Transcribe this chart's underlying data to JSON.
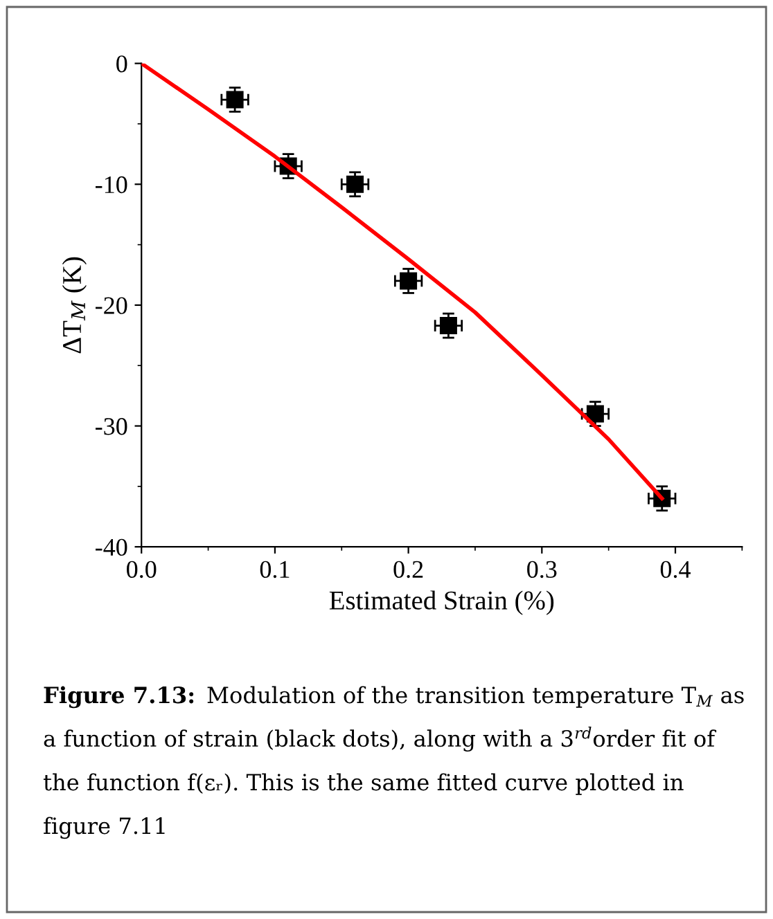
{
  "chart_data": {
    "type": "scatter",
    "xlabel": "Estimated Strain (%)",
    "ylabel": "ΔT$_{M}$ (K)",
    "series": [
      {
        "color": "#000000",
        "marker": "square",
        "x": [
          0.07,
          0.11,
          0.16,
          0.2,
          0.23,
          0.34,
          0.39
        ],
        "values": [
          -3,
          -8.5,
          -10,
          -18,
          -21.7,
          -29,
          -36
        ],
        "errors": [
          1,
          1,
          1,
          1,
          1,
          1,
          1
        ],
        "xerrors": [
          0.01,
          0.01,
          0.01,
          0.01,
          0.01,
          0.01,
          0.01
        ]
      },
      {
        "type": "line",
        "color": "#ff0000",
        "marker": "none",
        "line_style": "solid",
        "x": [
          0,
          0.05,
          0.1,
          0.15,
          0.2,
          0.25,
          0.3,
          0.35,
          0.39
        ],
        "values": [
          0,
          -3.8,
          -7.7,
          -11.9,
          -16.2,
          -20.6,
          -25.8,
          -31.1,
          -36
        ]
      }
    ],
    "xlim": [
      0,
      0.45
    ],
    "xticks": [
      {
        "value": 0,
        "label": "0.0"
      },
      0.1,
      0.2,
      0.3,
      0.4
    ],
    "ylim": [
      -40,
      0
    ],
    "yticks": [
      -40,
      -30,
      -20,
      -10,
      0
    ],
    "grid": false,
    "legend": false,
    "annotations": [
      "Figure 7.13:",
      "Modulation of the transition temperature T$_{M}$ as a function of strain (black dots), along with a 3$^{rd}$order fit of the function f(εᵣ). This is the same fitted curve plotted in figure 7.11"
    ]
  }
}
